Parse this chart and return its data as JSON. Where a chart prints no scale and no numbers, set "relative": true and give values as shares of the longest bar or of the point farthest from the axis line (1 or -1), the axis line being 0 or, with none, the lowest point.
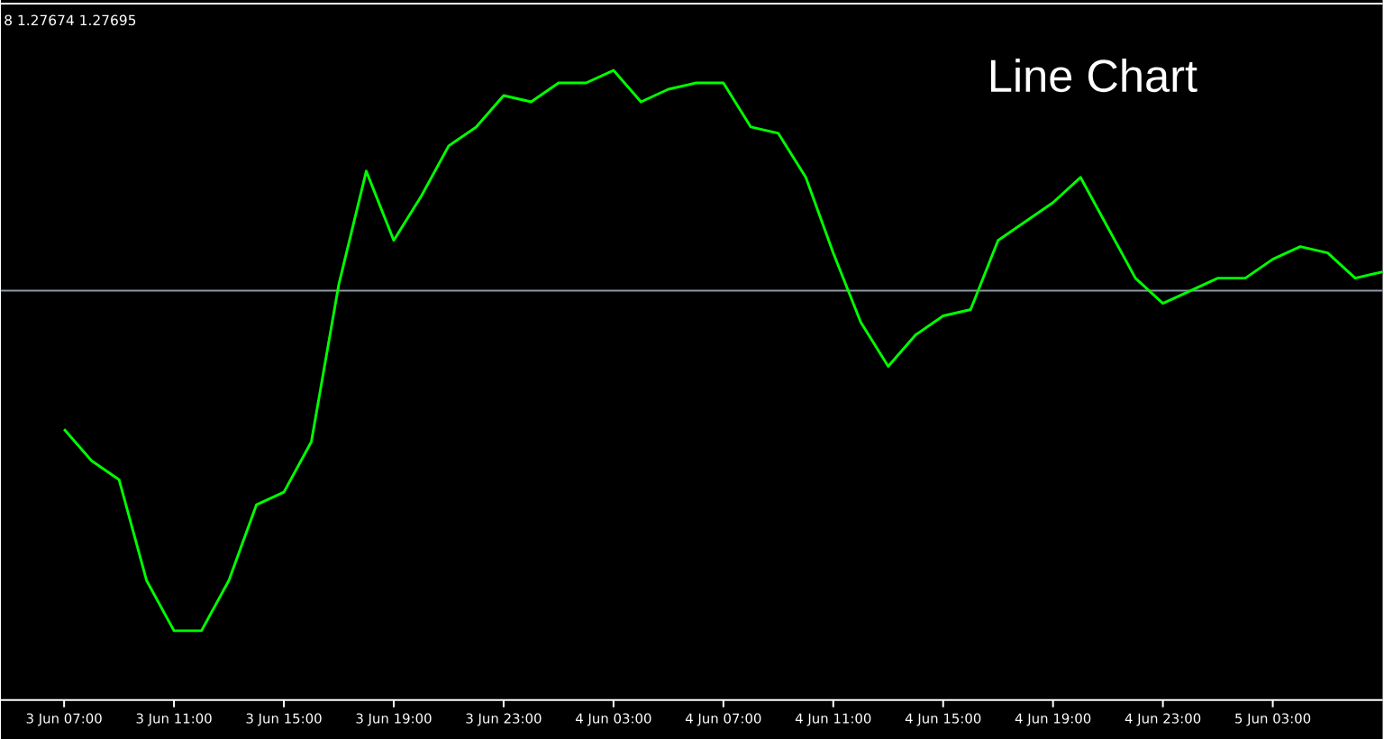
{
  "chart_data": {
    "type": "line",
    "title": "Line Chart",
    "relative": true,
    "annotations": [
      "8 1.27674 1.27695"
    ],
    "categories": [
      "3 Jun 07:00",
      null,
      null,
      null,
      "3 Jun 11:00",
      null,
      null,
      null,
      "3 Jun 15:00",
      null,
      null,
      null,
      "3 Jun 19:00",
      null,
      null,
      null,
      "3 Jun 23:00",
      null,
      null,
      null,
      "4 Jun 03:00",
      null,
      null,
      null,
      "4 Jun 07:00",
      null,
      null,
      null,
      "4 Jun 11:00",
      null,
      null,
      null,
      "4 Jun 15:00",
      null,
      null,
      null,
      "4 Jun 19:00",
      null,
      null,
      null,
      "4 Jun 23:00",
      null,
      null,
      null,
      "5 Jun 03:00",
      null,
      null,
      null,
      null
    ],
    "series": [
      {
        "color": "#00ff00",
        "values": [
          0.43,
          0.38,
          0.35,
          0.19,
          0.11,
          0.11,
          0.19,
          0.31,
          0.33,
          0.41,
          0.66,
          0.84,
          0.73,
          0.8,
          0.88,
          0.91,
          0.96,
          0.95,
          0.98,
          0.98,
          1,
          0.95,
          0.97,
          0.98,
          0.98,
          0.91,
          0.9,
          0.83,
          0.71,
          0.6,
          0.53,
          0.58,
          0.61,
          0.62,
          0.73,
          0.76,
          0.79,
          0.83,
          0.75,
          0.67,
          0.63,
          0.65,
          0.67,
          0.67,
          0.7,
          0.72,
          0.71,
          0.67,
          0.68
        ]
      }
    ],
    "ref_lines": [
      {
        "axis": "y",
        "value": 0.65,
        "color": "#8c99a6"
      }
    ]
  }
}
